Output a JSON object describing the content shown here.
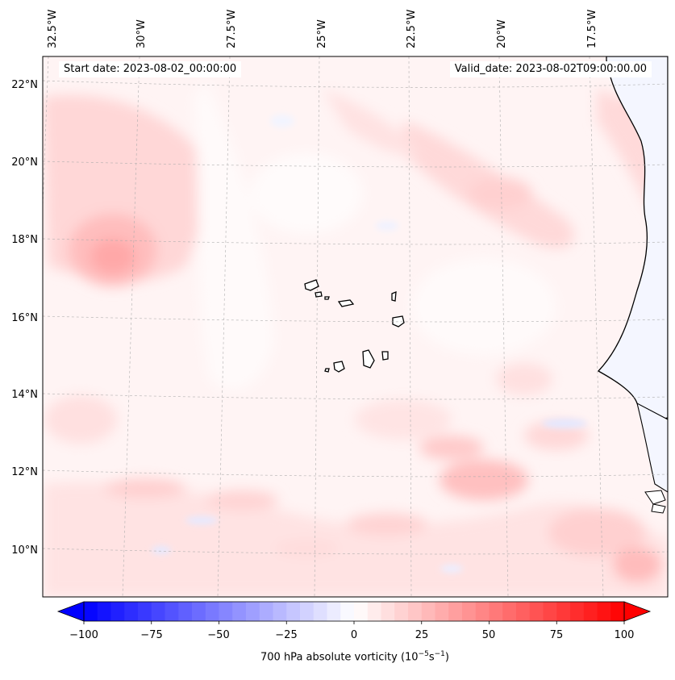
{
  "map": {
    "start_date": "Start date: 2023-08-02_00:00:00",
    "valid_date": "Valid_date: 2023-08-02T09:00:00.00",
    "longitude_labels": [
      "32.5°W",
      "30°W",
      "27.5°W",
      "25°W",
      "22.5°W",
      "20°W",
      "17.5°W"
    ],
    "latitude_labels": [
      "22°N",
      "20°N",
      "18°N",
      "16°N",
      "14°N",
      "12°N",
      "10°N"
    ],
    "features": [
      "Cape Verde islands",
      "West African coastline"
    ]
  },
  "colorbar": {
    "title_prefix": "700 hPa absolute vorticity (10",
    "title_exp1": "−5",
    "title_mid": "s",
    "title_exp2": "−1",
    "title_suffix": ")",
    "ticks": [
      "−100",
      "−75",
      "−50",
      "−25",
      "0",
      "25",
      "50",
      "75",
      "100"
    ],
    "min_value": -100,
    "max_value": 100,
    "colormap": "bwr",
    "low_color": "#0000ff",
    "mid_color": "#ffffff",
    "high_color": "#ff0000"
  }
}
